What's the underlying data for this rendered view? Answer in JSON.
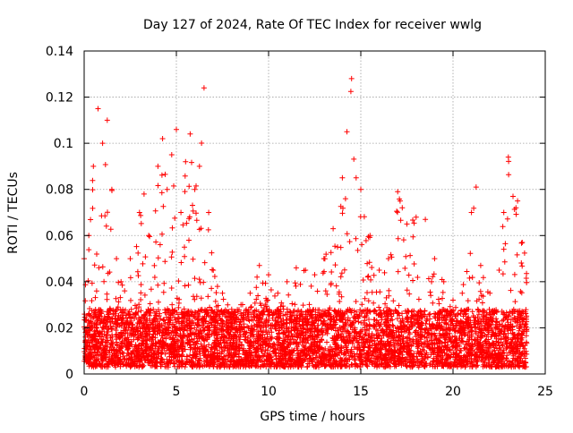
{
  "chart_data": {
    "type": "scatter",
    "title": "Day 127 of 2024, Rate Of TEC Index for receiver wwlg",
    "xlabel": "GPS time / hours",
    "ylabel": "ROTI / TECUs",
    "xlim": [
      0,
      25
    ],
    "ylim": [
      0,
      0.14
    ],
    "x_ticks": [
      "0",
      "5",
      "10",
      "15",
      "20",
      "25"
    ],
    "y_ticks": [
      "0",
      "0.02",
      "0.04",
      "0.06",
      "0.08",
      "0.1",
      "0.12",
      "0.14"
    ],
    "grid": true,
    "marker": "+",
    "series_color": "#ff0000",
    "envelope_note": "Dense point cloud; values summarized as typical band plus peak envelope per time bin",
    "typical_band": {
      "low": 0.003,
      "high": 0.028
    },
    "peak_envelope": {
      "x": [
        0.0,
        0.25,
        0.5,
        0.75,
        1.0,
        1.25,
        1.5,
        1.75,
        2.0,
        2.5,
        3.0,
        3.25,
        3.5,
        4.0,
        4.25,
        4.5,
        4.75,
        5.0,
        5.25,
        5.5,
        5.75,
        6.0,
        6.25,
        6.5,
        6.75,
        7.0,
        7.5,
        8.0,
        8.5,
        9.0,
        9.5,
        10.0,
        10.5,
        11.0,
        11.5,
        12.0,
        12.5,
        13.0,
        13.5,
        14.0,
        14.25,
        14.5,
        14.75,
        15.0,
        15.5,
        16.0,
        16.5,
        17.0,
        17.25,
        17.5,
        18.0,
        18.5,
        19.0,
        19.5,
        20.0,
        20.5,
        21.0,
        21.25,
        21.5,
        22.0,
        22.5,
        22.75,
        23.0,
        23.25,
        23.5,
        23.75
      ],
      "y": [
        0.05,
        0.06,
        0.09,
        0.115,
        0.1,
        0.11,
        0.08,
        0.05,
        0.04,
        0.05,
        0.07,
        0.078,
        0.06,
        0.09,
        0.102,
        0.08,
        0.095,
        0.106,
        0.07,
        0.092,
        0.104,
        0.08,
        0.09,
        0.124,
        0.07,
        0.045,
        0.035,
        0.028,
        0.03,
        0.035,
        0.047,
        0.043,
        0.035,
        0.04,
        0.046,
        0.045,
        0.043,
        0.05,
        0.063,
        0.085,
        0.105,
        0.128,
        0.085,
        0.08,
        0.06,
        0.045,
        0.05,
        0.079,
        0.072,
        0.065,
        0.068,
        0.067,
        0.05,
        0.04,
        0.032,
        0.035,
        0.07,
        0.081,
        0.047,
        0.035,
        0.045,
        0.07,
        0.094,
        0.077,
        0.075,
        0.057
      ]
    }
  }
}
